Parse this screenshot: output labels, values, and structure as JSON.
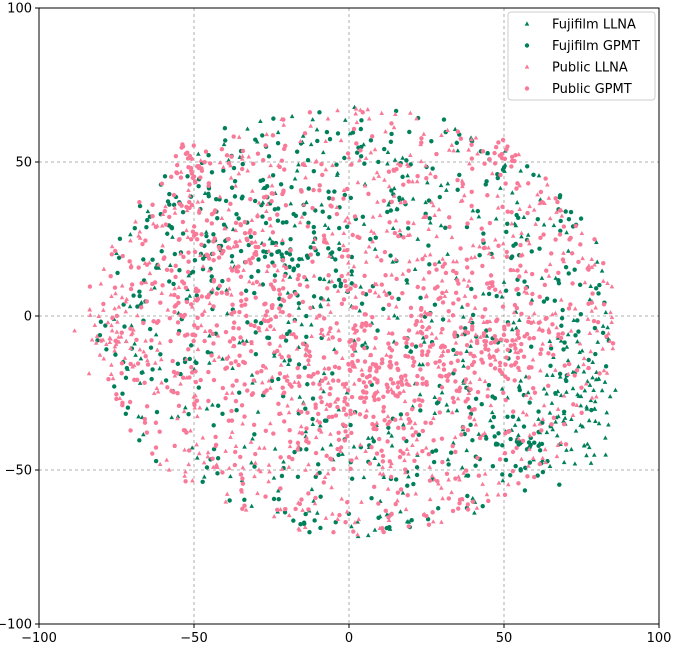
{
  "chart_data": {
    "type": "scatter",
    "title": "",
    "xlabel": "",
    "ylabel": "",
    "xlim": [
      -100,
      100
    ],
    "ylim": [
      -100,
      100
    ],
    "xticks": [
      -100,
      -50,
      0,
      50,
      100
    ],
    "yticks": [
      -100,
      -50,
      0,
      50,
      100
    ],
    "grid": true,
    "grid_style": "dashed",
    "legend_position": "top-right",
    "series": [
      {
        "name": "Fujifilm LLNA",
        "marker": "triangle",
        "color": "#00805a",
        "count": 420
      },
      {
        "name": "Fujifilm GPMT",
        "marker": "circle",
        "color": "#00805a",
        "count": 620
      },
      {
        "name": "Public LLNA",
        "marker": "triangle",
        "color": "#f87a98",
        "count": 700
      },
      {
        "name": "Public GPMT",
        "marker": "circle",
        "color": "#f87a98",
        "count": 1150
      }
    ],
    "clusters": [
      {
        "series": 0,
        "x": 72,
        "y": -20,
        "spread": 8,
        "n": 40
      },
      {
        "series": 0,
        "x": 70,
        "y": -38,
        "spread": 7,
        "n": 45
      },
      {
        "series": 1,
        "x": 55,
        "y": -42,
        "spread": 7,
        "n": 40
      },
      {
        "series": 1,
        "x": -40,
        "y": 30,
        "spread": 12,
        "n": 60
      },
      {
        "series": 1,
        "x": -10,
        "y": 20,
        "spread": 10,
        "n": 50
      },
      {
        "series": 2,
        "x": -75,
        "y": -5,
        "spread": 6,
        "n": 40
      },
      {
        "series": 3,
        "x": 5,
        "y": -20,
        "spread": 15,
        "n": 200
      },
      {
        "series": 3,
        "x": -40,
        "y": 10,
        "spread": 15,
        "n": 160
      },
      {
        "series": 3,
        "x": 45,
        "y": -5,
        "spread": 12,
        "n": 140
      },
      {
        "series": 3,
        "x": -50,
        "y": 50,
        "spread": 4,
        "n": 30
      },
      {
        "series": 3,
        "x": 50,
        "y": 52,
        "spread": 2,
        "n": 15
      }
    ]
  }
}
